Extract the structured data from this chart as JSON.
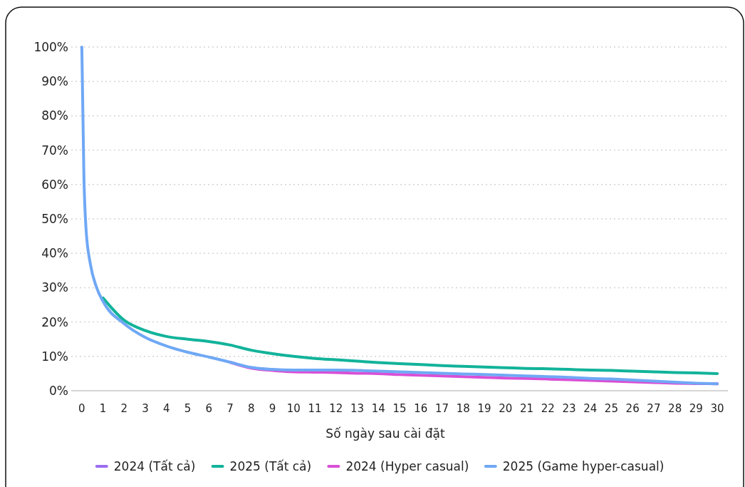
{
  "chart_data": {
    "type": "line",
    "xlabel": "Số ngày sau cài đặt",
    "xlim": [
      -0.5,
      30.5
    ],
    "xticks": [
      0,
      1,
      2,
      3,
      4,
      5,
      6,
      7,
      8,
      9,
      10,
      11,
      12,
      13,
      14,
      15,
      16,
      17,
      18,
      19,
      20,
      21,
      22,
      23,
      24,
      25,
      26,
      27,
      28,
      29,
      30
    ],
    "ylim": [
      0,
      100
    ],
    "yticks": [
      {
        "value": 0,
        "label": "0%"
      },
      {
        "value": 10,
        "label": "10%"
      },
      {
        "value": 20,
        "label": "20%"
      },
      {
        "value": 30,
        "label": "30%"
      },
      {
        "value": 40,
        "label": "40%"
      },
      {
        "value": 50,
        "label": "50%"
      },
      {
        "value": 60,
        "label": "60%"
      },
      {
        "value": 70,
        "label": "70%"
      },
      {
        "value": 80,
        "label": "80%"
      },
      {
        "value": 90,
        "label": "90%"
      },
      {
        "value": 100,
        "label": "100%"
      }
    ],
    "grid": "y",
    "legend": "bottom",
    "marker": "none",
    "line_style": "solid",
    "series": [
      {
        "name": "2024 (Tất cả)",
        "color": "#9b6cf0"
      },
      {
        "name": "2025 (Tất cả)",
        "color": "#12b39a",
        "x": [
          1,
          2,
          3,
          4,
          5,
          6,
          7,
          8,
          9,
          10,
          11,
          12,
          13,
          14,
          15,
          16,
          17,
          18,
          19,
          20,
          21,
          22,
          23,
          24,
          25,
          26,
          27,
          28,
          29,
          30
        ],
        "values": [
          27,
          20.5,
          17.5,
          15.8,
          15,
          14.3,
          13.3,
          11.8,
          10.8,
          10,
          9.4,
          9,
          8.6,
          8.2,
          7.9,
          7.6,
          7.3,
          7.1,
          6.9,
          6.7,
          6.5,
          6.4,
          6.2,
          6,
          5.9,
          5.7,
          5.5,
          5.3,
          5.2,
          5
        ]
      },
      {
        "name": "2024 (Hyper casual)",
        "color": "#d94fd6",
        "x": [
          7,
          8,
          9,
          10,
          11,
          12,
          13,
          14,
          15,
          16,
          17,
          18,
          19,
          20,
          21,
          22,
          23,
          24,
          25,
          26,
          27,
          28,
          29,
          30
        ],
        "values": [
          8.3,
          6.6,
          5.9,
          5.5,
          5.4,
          5.3,
          5.1,
          5,
          4.7,
          4.5,
          4.3,
          4.1,
          3.9,
          3.7,
          3.6,
          3.4,
          3.2,
          3,
          2.8,
          2.6,
          2.4,
          2.2,
          2.1,
          2
        ]
      },
      {
        "name": "2025 (Game hyper-casual)",
        "color": "#6fa8f5",
        "x": [
          0,
          0.1,
          0.2,
          0.4,
          0.7,
          1,
          2,
          3,
          4,
          5,
          6,
          7,
          8,
          9,
          10,
          11,
          12,
          13,
          14,
          15,
          16,
          17,
          18,
          19,
          20,
          21,
          22,
          23,
          24,
          25,
          26,
          27,
          28,
          29,
          30
        ],
        "values": [
          100,
          62,
          47,
          37,
          30,
          26,
          19.5,
          15.5,
          13,
          11.2,
          9.8,
          8.3,
          6.8,
          6.2,
          6,
          6,
          6,
          5.9,
          5.7,
          5.5,
          5.3,
          5.1,
          4.9,
          4.7,
          4.5,
          4.3,
          4.1,
          3.9,
          3.6,
          3.4,
          3.1,
          2.8,
          2.5,
          2.2,
          2
        ]
      }
    ]
  }
}
